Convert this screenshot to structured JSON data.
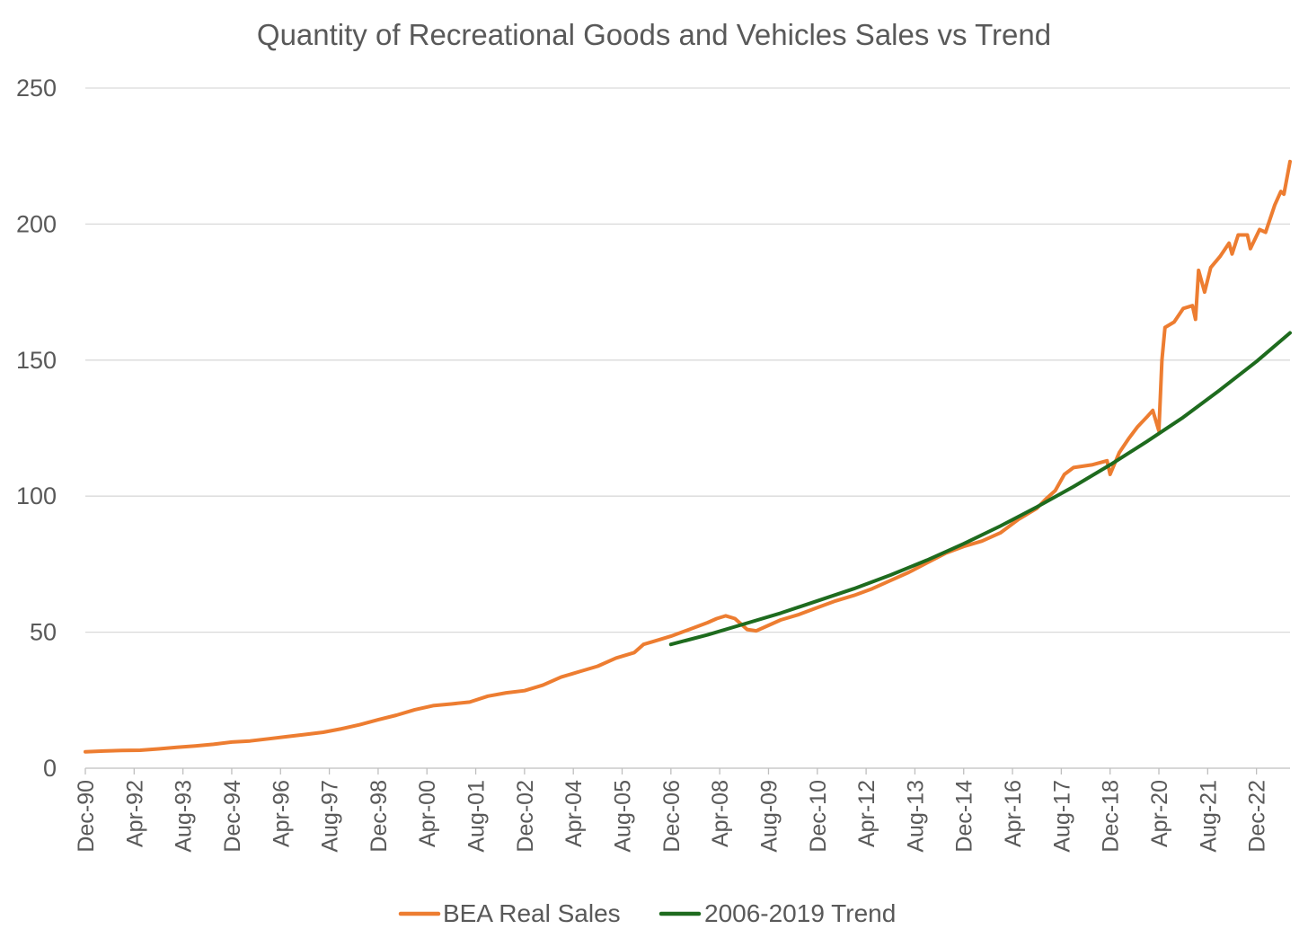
{
  "chart_data": {
    "type": "line",
    "title": "Quantity of Recreational Goods and Vehicles Sales vs Trend",
    "xlabel": "",
    "ylabel": "",
    "ylim": [
      0,
      250
    ],
    "yticks": [
      0,
      50,
      100,
      150,
      200,
      250
    ],
    "xlim": [
      "1990-12",
      "2023-11"
    ],
    "xticks": [
      "Dec-90",
      "Apr-92",
      "Aug-93",
      "Dec-94",
      "Apr-96",
      "Aug-97",
      "Dec-98",
      "Apr-00",
      "Aug-01",
      "Dec-02",
      "Apr-04",
      "Aug-05",
      "Dec-06",
      "Apr-08",
      "Aug-09",
      "Dec-10",
      "Apr-12",
      "Aug-13",
      "Dec-14",
      "Apr-16",
      "Aug-17",
      "Dec-18",
      "Apr-20",
      "Aug-21",
      "Dec-22"
    ],
    "grid": true,
    "legend": "bottom",
    "series": [
      {
        "name": "BEA Real Sales",
        "color": "#ed7d31",
        "points": [
          [
            "1990-12",
            6
          ],
          [
            "1991-06",
            6.3
          ],
          [
            "1991-12",
            6.5
          ],
          [
            "1992-06",
            6.6
          ],
          [
            "1992-12",
            7.1
          ],
          [
            "1993-06",
            7.7
          ],
          [
            "1993-12",
            8.2
          ],
          [
            "1994-06",
            8.8
          ],
          [
            "1994-12",
            9.6
          ],
          [
            "1995-06",
            10
          ],
          [
            "1995-12",
            10.8
          ],
          [
            "1996-06",
            11.6
          ],
          [
            "1996-12",
            12.4
          ],
          [
            "1997-06",
            13.2
          ],
          [
            "1997-12",
            14.5
          ],
          [
            "1998-06",
            16
          ],
          [
            "1998-12",
            17.8
          ],
          [
            "1999-06",
            19.5
          ],
          [
            "1999-12",
            21.5
          ],
          [
            "2000-06",
            23
          ],
          [
            "2000-12",
            23.6
          ],
          [
            "2001-06",
            24.3
          ],
          [
            "2001-12",
            26.5
          ],
          [
            "2002-06",
            27.7
          ],
          [
            "2002-12",
            28.5
          ],
          [
            "2003-06",
            30.5
          ],
          [
            "2003-12",
            33.5
          ],
          [
            "2004-06",
            35.5
          ],
          [
            "2004-12",
            37.5
          ],
          [
            "2005-06",
            40.5
          ],
          [
            "2005-12",
            42.5
          ],
          [
            "2006-03",
            45.5
          ],
          [
            "2006-06",
            46.5
          ],
          [
            "2006-12",
            48.5
          ],
          [
            "2007-06",
            51
          ],
          [
            "2007-12",
            53.5
          ],
          [
            "2008-03",
            55
          ],
          [
            "2008-06",
            56
          ],
          [
            "2008-09",
            55
          ],
          [
            "2009-01",
            51
          ],
          [
            "2009-04",
            50.5
          ],
          [
            "2009-08",
            52.5
          ],
          [
            "2009-12",
            54.5
          ],
          [
            "2010-06",
            56.5
          ],
          [
            "2010-12",
            59
          ],
          [
            "2011-06",
            61.5
          ],
          [
            "2011-12",
            63.5
          ],
          [
            "2012-06",
            66
          ],
          [
            "2012-12",
            69
          ],
          [
            "2013-06",
            72
          ],
          [
            "2013-12",
            75.5
          ],
          [
            "2014-06",
            79
          ],
          [
            "2014-12",
            81.5
          ],
          [
            "2015-06",
            83.5
          ],
          [
            "2015-12",
            86.5
          ],
          [
            "2016-06",
            91.5
          ],
          [
            "2016-12",
            95.5
          ],
          [
            "2017-03",
            99
          ],
          [
            "2017-06",
            102
          ],
          [
            "2017-09",
            108
          ],
          [
            "2017-12",
            110.5
          ],
          [
            "2018-06",
            111.5
          ],
          [
            "2018-11",
            113
          ],
          [
            "2018-12",
            108
          ],
          [
            "2019-03",
            116
          ],
          [
            "2019-06",
            121
          ],
          [
            "2019-09",
            125.5
          ],
          [
            "2019-12",
            129
          ],
          [
            "2020-02",
            131.5
          ],
          [
            "2020-04",
            124
          ],
          [
            "2020-05",
            150
          ],
          [
            "2020-06",
            162
          ],
          [
            "2020-09",
            164
          ],
          [
            "2020-12",
            169
          ],
          [
            "2021-03",
            170
          ],
          [
            "2021-04",
            165
          ],
          [
            "2021-05",
            183
          ],
          [
            "2021-07",
            175
          ],
          [
            "2021-09",
            184
          ],
          [
            "2021-12",
            188
          ],
          [
            "2022-03",
            193
          ],
          [
            "2022-04",
            189
          ],
          [
            "2022-06",
            196
          ],
          [
            "2022-09",
            196
          ],
          [
            "2022-10",
            191
          ],
          [
            "2023-01",
            198
          ],
          [
            "2023-03",
            197
          ],
          [
            "2023-06",
            207
          ],
          [
            "2023-08",
            212
          ],
          [
            "2023-09",
            211
          ],
          [
            "2023-11",
            223
          ]
        ]
      },
      {
        "name": "2006-2019 Trend",
        "color": "#1e6b1e",
        "points": [
          [
            "2006-12",
            45.5
          ],
          [
            "2007-12",
            49
          ],
          [
            "2008-12",
            53
          ],
          [
            "2009-12",
            57
          ],
          [
            "2010-12",
            61.5
          ],
          [
            "2011-12",
            66
          ],
          [
            "2012-12",
            71
          ],
          [
            "2013-12",
            76.5
          ],
          [
            "2014-12",
            82.5
          ],
          [
            "2015-12",
            89
          ],
          [
            "2016-12",
            96
          ],
          [
            "2017-12",
            103.5
          ],
          [
            "2018-12",
            111.5
          ],
          [
            "2019-12",
            120
          ],
          [
            "2020-12",
            129
          ],
          [
            "2021-12",
            139
          ],
          [
            "2022-12",
            149.5
          ],
          [
            "2023-11",
            160
          ]
        ]
      }
    ]
  }
}
